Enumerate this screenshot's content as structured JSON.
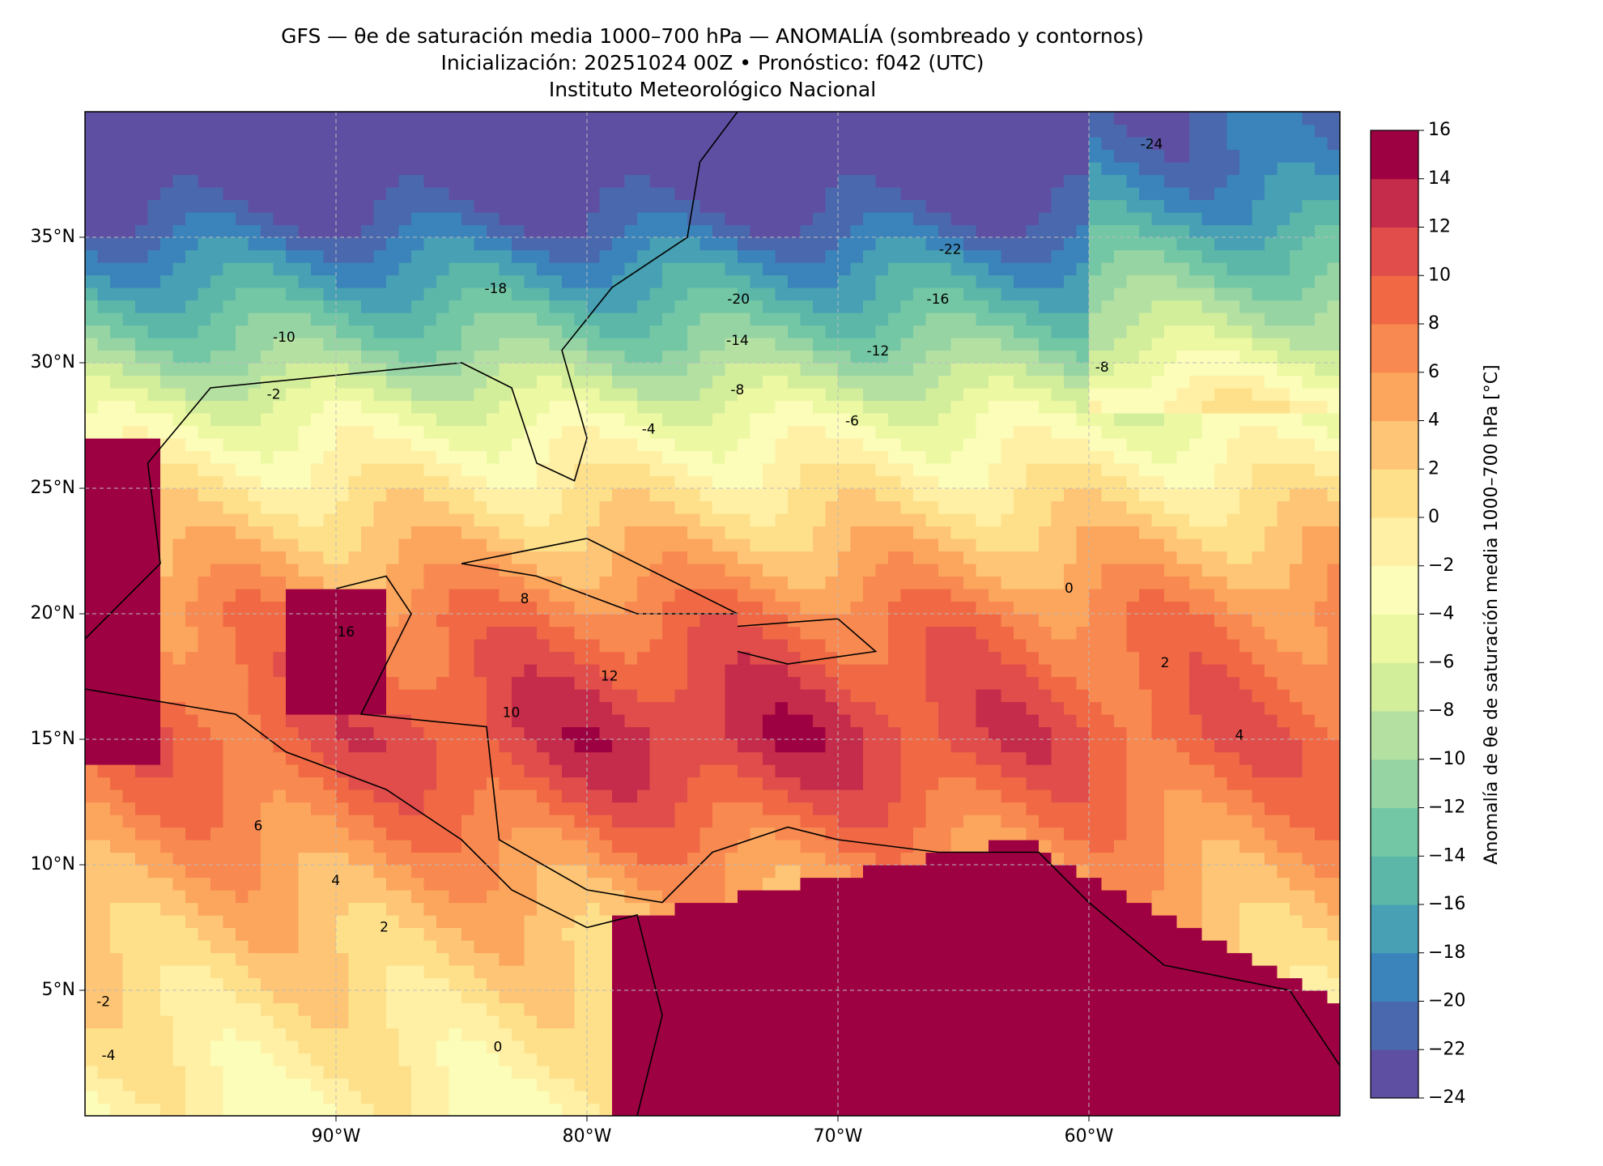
{
  "header": {
    "title": [
      "GFS — θe de saturación media 1000–700 hPa — ANOMALÍA (sombreado y contornos)",
      "Inicialización: 20251024 00Z   •   Pronóstico: f042 (UTC)",
      "Instituto Meteorológico Nacional"
    ]
  },
  "map": {
    "xlim": [
      -100,
      -50
    ],
    "ylim": [
      0,
      40
    ],
    "xticks": [
      {
        "value": -90,
        "label": "90°W"
      },
      {
        "value": -80,
        "label": "80°W"
      },
      {
        "value": -70,
        "label": "70°W"
      },
      {
        "value": -60,
        "label": "60°W"
      }
    ],
    "yticks": [
      {
        "value": 5,
        "label": "5°N"
      },
      {
        "value": 10,
        "label": "10°N"
      },
      {
        "value": 15,
        "label": "15°N"
      },
      {
        "value": 20,
        "label": "20°N"
      },
      {
        "value": 25,
        "label": "25°N"
      },
      {
        "value": 30,
        "label": "30°N"
      },
      {
        "value": 35,
        "label": "35°N"
      }
    ],
    "grid": true,
    "contour_labels": [
      "-24",
      "-22",
      "-20",
      "-18",
      "-16",
      "-14",
      "-12",
      "-10",
      "-8",
      "-8",
      "-6",
      "-4",
      "-2",
      "0",
      "2",
      "4",
      "6",
      "8",
      "10",
      "12",
      "2",
      "4",
      "-2",
      "-4",
      "0",
      "16"
    ]
  },
  "colorbar": {
    "label": "Anomalía de θe de saturación media 1000–700 hPa [°C]",
    "ticks": [
      {
        "value": -24,
        "label": "−24"
      },
      {
        "value": -22,
        "label": "−22"
      },
      {
        "value": -20,
        "label": "−20"
      },
      {
        "value": -18,
        "label": "−18"
      },
      {
        "value": -16,
        "label": "−16"
      },
      {
        "value": -14,
        "label": "−14"
      },
      {
        "value": -12,
        "label": "−12"
      },
      {
        "value": -10,
        "label": "−10"
      },
      {
        "value": -8,
        "label": "−8"
      },
      {
        "value": -6,
        "label": "−6"
      },
      {
        "value": -4,
        "label": "−4"
      },
      {
        "value": -2,
        "label": "−2"
      },
      0,
      2,
      4,
      6,
      8,
      10,
      12,
      14,
      16
    ],
    "colors": [
      "#5e4fa2",
      "#4a68ad",
      "#3a84bb",
      "#47a0b3",
      "#5cb7a9",
      "#74c7a5",
      "#96d4a4",
      "#b4e0a2",
      "#d3ee9b",
      "#edf8a3",
      "#fbfdb9",
      "#fff0a6",
      "#fee08b",
      "#fdc575",
      "#fca55d",
      "#f88950",
      "#f06944",
      "#e04d4b",
      "#c52b4a",
      "#9e0142"
    ]
  }
}
